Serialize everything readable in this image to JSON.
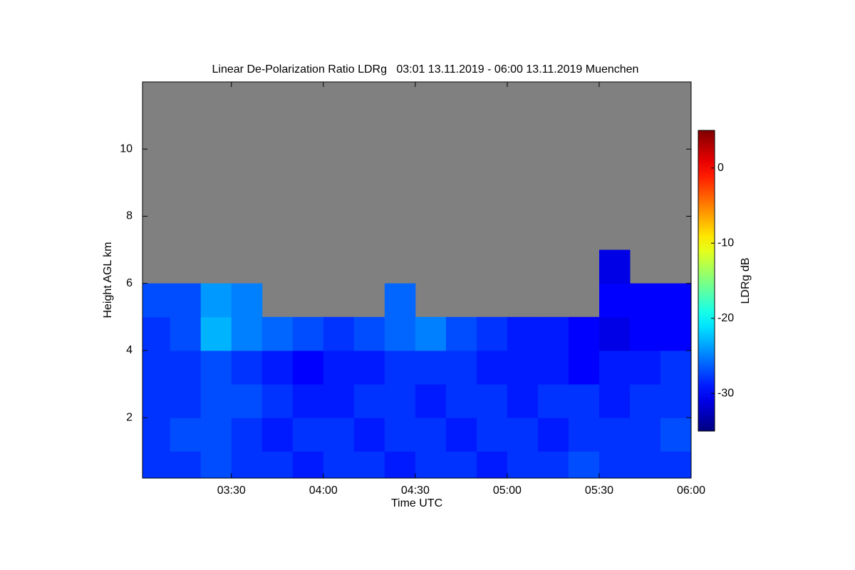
{
  "chart_data": {
    "type": "heatmap",
    "title": "Linear De-Polarization Ratio LDRg   03:01 13.11.2019 - 06:00 13.11.2019 Muenchen",
    "xlabel": "Time UTC",
    "ylabel": "Height AGL km",
    "colorbar_label": "LDRg dB",
    "xbins": [
      3.0167,
      3.1667,
      3.3333,
      3.5,
      3.6667,
      3.8333,
      4,
      4.1667,
      4.3333,
      4.5,
      4.6667,
      4.8333,
      5,
      5.1667,
      5.3333,
      5.5,
      5.6667,
      5.8333,
      6
    ],
    "ybins": [
      0.2,
      1,
      2,
      3,
      4,
      5,
      6,
      7,
      8,
      9,
      10,
      11,
      12
    ],
    "z": [
      [
        -28,
        -28,
        -27,
        -28,
        -28,
        -29,
        -28,
        -28,
        -29,
        -28,
        -28,
        -29,
        -28,
        -28,
        -27,
        -28,
        -28,
        -28
      ],
      [
        -28,
        -27,
        -27,
        -28,
        -29,
        -28,
        -28,
        -29,
        -28,
        -28,
        -29,
        -28,
        -28,
        -29,
        -28,
        -28,
        -28,
        -27
      ],
      [
        -28,
        -28,
        -27,
        -27,
        -28,
        -29,
        -29,
        -28,
        -28,
        -29,
        -28,
        -28,
        -29,
        -28,
        -28,
        -29,
        -28,
        -28
      ],
      [
        -28,
        -28,
        -27,
        -28,
        -29,
        -30,
        -29,
        -29,
        -28,
        -28,
        -28,
        -29,
        -29,
        -29,
        -30,
        -29,
        -29,
        -28
      ],
      [
        -28,
        -27,
        -23,
        -25,
        -26,
        -27,
        -28,
        -27,
        -26,
        -25,
        -27,
        -28,
        -29,
        -29,
        -30,
        -31,
        -30,
        -30
      ],
      [
        -27,
        -27,
        -24,
        -25,
        null,
        null,
        null,
        null,
        -26,
        null,
        null,
        null,
        null,
        null,
        null,
        -30,
        -30,
        -30
      ],
      [
        null,
        null,
        null,
        null,
        null,
        null,
        null,
        null,
        null,
        null,
        null,
        null,
        null,
        null,
        null,
        -31,
        null,
        null
      ],
      [
        null,
        null,
        null,
        null,
        null,
        null,
        null,
        null,
        null,
        null,
        null,
        null,
        null,
        null,
        null,
        null,
        null,
        null
      ],
      [
        null,
        null,
        null,
        null,
        null,
        null,
        null,
        null,
        null,
        null,
        null,
        null,
        null,
        null,
        null,
        null,
        null,
        null
      ],
      [
        null,
        null,
        null,
        null,
        null,
        null,
        null,
        null,
        null,
        null,
        null,
        null,
        null,
        null,
        null,
        null,
        null,
        null
      ],
      [
        null,
        null,
        null,
        null,
        null,
        null,
        null,
        null,
        null,
        null,
        null,
        null,
        null,
        null,
        null,
        null,
        null,
        null
      ],
      [
        null,
        null,
        null,
        null,
        null,
        null,
        null,
        null,
        null,
        null,
        null,
        null,
        null,
        null,
        null,
        null,
        null,
        null
      ]
    ],
    "missing_color": "#808080",
    "colormap": "jet",
    "xlim": [
      3.0167,
      6
    ],
    "xticks": [
      {
        "value": 3.5,
        "label": "03:30"
      },
      {
        "value": 4,
        "label": "04:00"
      },
      {
        "value": 4.5,
        "label": "04:30"
      },
      {
        "value": 5,
        "label": "05:00"
      },
      {
        "value": 5.5,
        "label": "05:30"
      },
      {
        "value": 6,
        "label": "06:00"
      }
    ],
    "ylim": [
      0.2,
      12
    ],
    "yticks": [
      2,
      4,
      6,
      8,
      10
    ],
    "clim": [
      -35,
      5
    ],
    "cticks": [
      -30,
      -20,
      -10,
      0
    ]
  }
}
